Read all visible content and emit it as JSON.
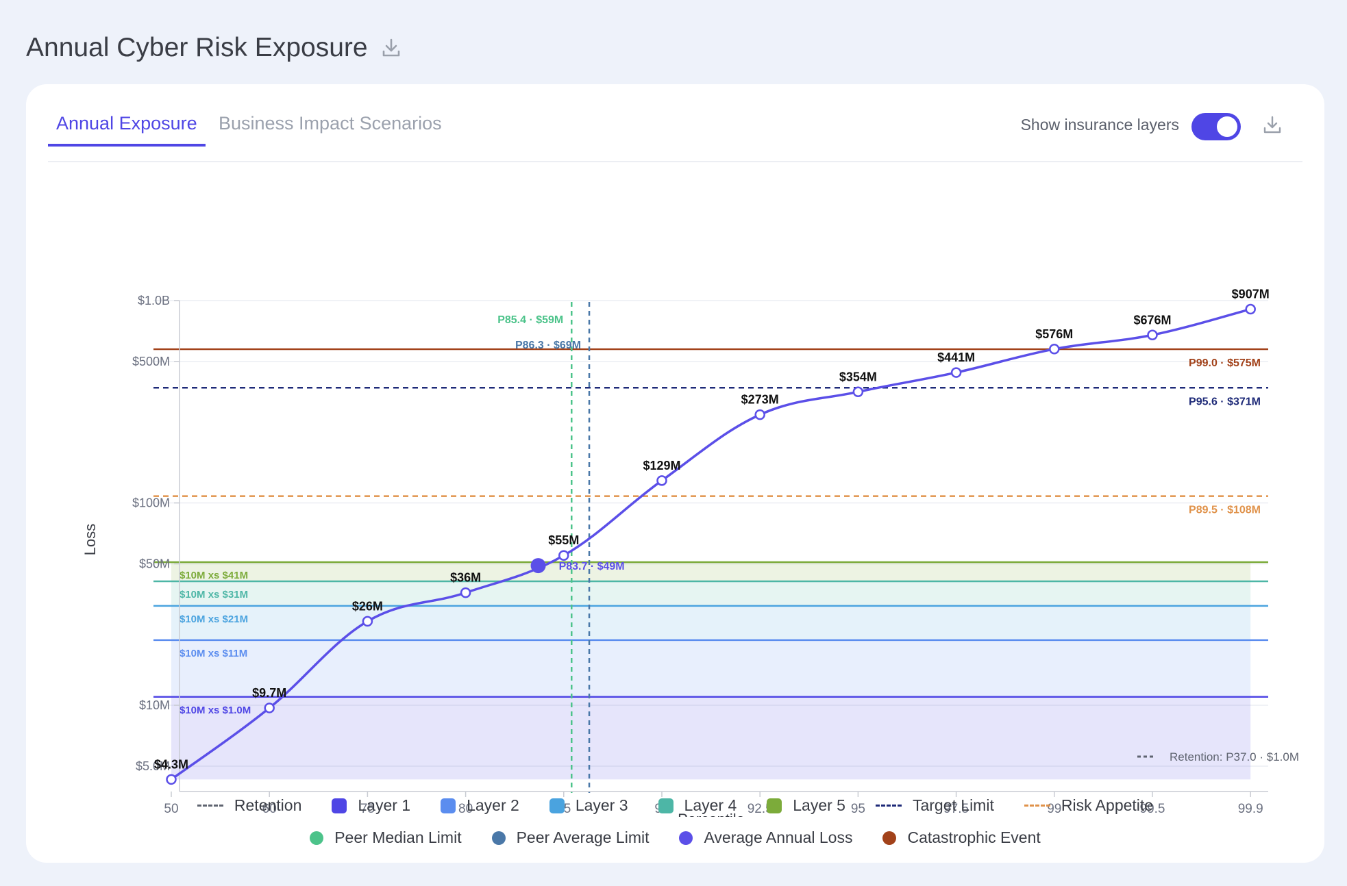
{
  "page": {
    "title": "Annual Cyber Risk Exposure"
  },
  "tabs": [
    {
      "label": "Annual Exposure",
      "active": true
    },
    {
      "label": "Business Impact Scenarios",
      "active": false
    }
  ],
  "toggle": {
    "label": "Show insurance layers",
    "on": true
  },
  "icons": {
    "title_download": "download-icon",
    "card_download": "download-icon"
  },
  "colors": {
    "accent": "#4f46e5",
    "layer1": "#4f46e5",
    "layer2": "#5b8def",
    "layer3": "#4aa3df",
    "layer4": "#4db6a6",
    "layer5": "#7cab3a",
    "target": "#1e2a78",
    "appetite": "#e0924a",
    "peer_median": "#4cc38a",
    "peer_average": "#4a78a8",
    "aal": "#5b4fe8",
    "catastrophic": "#a2421a",
    "retention": "#5f6470"
  },
  "chart_data": {
    "type": "line",
    "xlabel": "Percentile",
    "ylabel": "Loss",
    "y_scale": "log",
    "ylim": [
      4.3,
      1000
    ],
    "yticks": [
      {
        "value": 5,
        "label": "$5.0M"
      },
      {
        "value": 10,
        "label": "$10M"
      },
      {
        "value": 50,
        "label": "$50M"
      },
      {
        "value": 100,
        "label": "$100M"
      },
      {
        "value": 500,
        "label": "$500M"
      },
      {
        "value": 1000,
        "label": "$1.0B"
      }
    ],
    "categories": [
      "50",
      "60",
      "75",
      "80",
      "85",
      "90",
      "92.5",
      "95",
      "97.5",
      "99",
      "99.5",
      "99.9"
    ],
    "series": [
      {
        "values": [
          4.3,
          9.7,
          26,
          36,
          55,
          129,
          273,
          354,
          441,
          576,
          676,
          907
        ],
        "labels": [
          "$4.3M",
          "$9.7M",
          "$26M",
          "$36M",
          "$55M",
          "$129M",
          "$273M",
          "$354M",
          "$441M",
          "$576M",
          "$676M",
          "$907M"
        ]
      }
    ],
    "average_annual_loss": {
      "percentile": 83.7,
      "value": 49,
      "label": "P83.7 · $49M"
    },
    "horizontal_lines": [
      {
        "name": "Catastrophic Event",
        "value": 575,
        "label": "P99.0 · $575M",
        "style": "solid",
        "color": "#a2421a"
      },
      {
        "name": "Target Limit",
        "value": 371,
        "label": "P95.6 · $371M",
        "style": "dashed",
        "color": "#1e2a78"
      },
      {
        "name": "Risk Appetite",
        "value": 108,
        "label": "P89.5 · $108M",
        "style": "dashed",
        "color": "#e0924a"
      }
    ],
    "vertical_lines": [
      {
        "name": "Peer Median Limit",
        "percentile": 85.4,
        "value": 59,
        "label": "P85.4 · $59M",
        "color": "#4cc38a"
      },
      {
        "name": "Peer Average Limit",
        "percentile": 86.3,
        "value": 69,
        "label": "P86.3 · $69M",
        "color": "#4a78a8"
      }
    ],
    "retention": {
      "percentile": 37.0,
      "value": 1.0,
      "label": "Retention: P37.0 · $1.0M"
    },
    "insurance_layers": [
      {
        "name": "Layer 1",
        "bottom": 1.0,
        "top": 11,
        "label": "$10M xs $1.0M",
        "color": "#4f46e5"
      },
      {
        "name": "Layer 2",
        "bottom": 11,
        "top": 21,
        "label": "$10M xs $11M",
        "color": "#5b8def"
      },
      {
        "name": "Layer 3",
        "bottom": 21,
        "top": 31,
        "label": "$10M xs $21M",
        "color": "#4aa3df"
      },
      {
        "name": "Layer 4",
        "bottom": 31,
        "top": 41,
        "label": "$10M xs $31M",
        "color": "#4db6a6"
      },
      {
        "name": "Layer 5",
        "bottom": 41,
        "top": 51,
        "label": "$10M xs $41M",
        "color": "#7cab3a"
      }
    ],
    "legend": {
      "placement": "bottom",
      "rows": [
        [
          {
            "label": "Retention",
            "shape": "dash",
            "color": "#5f6470"
          },
          {
            "label": "Layer 1",
            "shape": "square",
            "color": "#4f46e5"
          },
          {
            "label": "Layer 2",
            "shape": "square",
            "color": "#5b8def"
          },
          {
            "label": "Layer 3",
            "shape": "square",
            "color": "#4aa3df"
          },
          {
            "label": "Layer 4",
            "shape": "square",
            "color": "#4db6a6"
          },
          {
            "label": "Layer 5",
            "shape": "square",
            "color": "#7cab3a"
          },
          {
            "label": "Target Limit",
            "shape": "dash",
            "color": "#1e2a78"
          },
          {
            "label": "Risk Appetite",
            "shape": "dash",
            "color": "#e0924a"
          }
        ],
        [
          {
            "label": "Peer Median Limit",
            "shape": "circle",
            "color": "#4cc38a"
          },
          {
            "label": "Peer Average Limit",
            "shape": "circle",
            "color": "#4a78a8"
          },
          {
            "label": "Average Annual Loss",
            "shape": "circle",
            "color": "#5b4fe8"
          },
          {
            "label": "Catastrophic Event",
            "shape": "circle",
            "color": "#a2421a"
          }
        ]
      ]
    },
    "grid": true
  }
}
